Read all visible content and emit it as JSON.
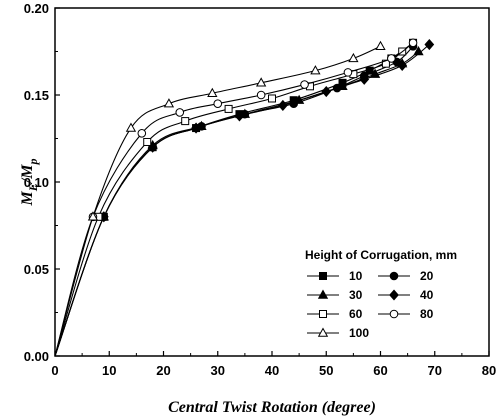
{
  "chart_data": {
    "type": "line",
    "xlabel": "Central Twist Rotation (degree)",
    "ylabel": {
      "main": "M",
      "sub1": "E",
      "sep": "/",
      "main2": "M",
      "sub2": "p"
    },
    "xlim": [
      0,
      80
    ],
    "ylim": [
      0.0,
      0.2
    ],
    "xticks": [
      "0",
      "10",
      "20",
      "30",
      "40",
      "50",
      "60",
      "70",
      "80"
    ],
    "yticks": [
      "0.00",
      "0.05",
      "0.10",
      "0.15",
      "0.20"
    ],
    "grid": false,
    "legend": {
      "title": "Height of Corrugation, mm",
      "placement": "lower-right",
      "columns": 2
    },
    "series": [
      {
        "name": "10",
        "marker": "square-filled",
        "points": [
          [
            0,
            0
          ],
          [
            9,
            0.08
          ],
          [
            18,
            0.12
          ],
          [
            26,
            0.131
          ],
          [
            34,
            0.139
          ],
          [
            44,
            0.147
          ],
          [
            53,
            0.157
          ],
          [
            58,
            0.164
          ],
          [
            62,
            0.171
          ],
          [
            66,
            0.18
          ]
        ]
      },
      {
        "name": "20",
        "marker": "circle-filled",
        "points": [
          [
            0,
            0
          ],
          [
            9,
            0.08
          ],
          [
            18,
            0.12
          ],
          [
            27,
            0.132
          ],
          [
            35,
            0.139
          ],
          [
            44,
            0.145
          ],
          [
            52,
            0.154
          ],
          [
            57,
            0.161
          ],
          [
            63,
            0.169
          ],
          [
            66,
            0.178
          ]
        ]
      },
      {
        "name": "30",
        "marker": "triangle-filled",
        "points": [
          [
            0,
            0
          ],
          [
            9,
            0.08
          ],
          [
            18,
            0.121
          ],
          [
            27,
            0.132
          ],
          [
            35,
            0.139
          ],
          [
            45,
            0.147
          ],
          [
            53,
            0.155
          ],
          [
            59,
            0.162
          ],
          [
            64,
            0.168
          ],
          [
            67,
            0.175
          ]
        ]
      },
      {
        "name": "40",
        "marker": "diamond-filled",
        "points": [
          [
            0,
            0
          ],
          [
            9,
            0.08
          ],
          [
            18,
            0.12
          ],
          [
            26,
            0.131
          ],
          [
            34,
            0.138
          ],
          [
            42,
            0.144
          ],
          [
            50,
            0.152
          ],
          [
            57,
            0.159
          ],
          [
            64,
            0.167
          ],
          [
            69,
            0.179
          ]
        ]
      },
      {
        "name": "60",
        "marker": "square-open",
        "points": [
          [
            0,
            0
          ],
          [
            8,
            0.08
          ],
          [
            17,
            0.123
          ],
          [
            24,
            0.135
          ],
          [
            32,
            0.142
          ],
          [
            40,
            0.148
          ],
          [
            47,
            0.155
          ],
          [
            55,
            0.162
          ],
          [
            61,
            0.168
          ],
          [
            64,
            0.175
          ]
        ]
      },
      {
        "name": "80",
        "marker": "circle-open",
        "points": [
          [
            0,
            0
          ],
          [
            7,
            0.08
          ],
          [
            16,
            0.128
          ],
          [
            23,
            0.14
          ],
          [
            30,
            0.145
          ],
          [
            38,
            0.15
          ],
          [
            46,
            0.156
          ],
          [
            54,
            0.163
          ],
          [
            62,
            0.171
          ],
          [
            66,
            0.18
          ]
        ]
      },
      {
        "name": "100",
        "marker": "triangle-open",
        "points": [
          [
            0,
            0
          ],
          [
            7,
            0.08
          ],
          [
            14,
            0.131
          ],
          [
            21,
            0.145
          ],
          [
            29,
            0.151
          ],
          [
            38,
            0.157
          ],
          [
            48,
            0.164
          ],
          [
            55,
            0.171
          ],
          [
            60,
            0.178
          ]
        ]
      }
    ]
  }
}
